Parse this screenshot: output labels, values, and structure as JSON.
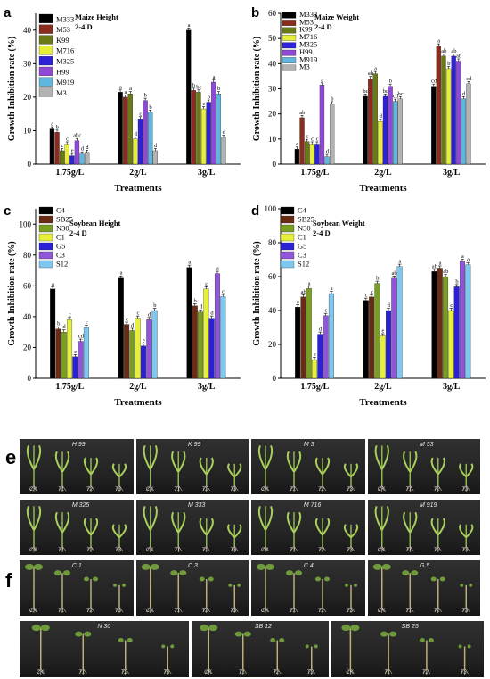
{
  "colors": {
    "maize": [
      "#000000",
      "#8b2d1e",
      "#6a7a16",
      "#e6ef3c",
      "#2d22d8",
      "#9048d6",
      "#5fb6df",
      "#b3b3b3"
    ],
    "soy": [
      "#000000",
      "#6b2c16",
      "#7a9d23",
      "#e6ef3c",
      "#2a20d6",
      "#8f57d7",
      "#7ec7ee"
    ],
    "soy_fill_overrides": [
      "#151515",
      "#5d3a25",
      "#78922e",
      "#d9ea4c",
      "#2d2fd0",
      "#8e5fd1",
      "#7ccaf0"
    ]
  },
  "chart_data": [
    {
      "type": "bar",
      "panel": "a",
      "legend_title": [
        "Maize Height",
        "2-4 D"
      ],
      "categories": [
        "1.75g/L",
        "2g/L",
        "3g/L"
      ],
      "xlabel": "Treatments",
      "ylabel": "Growth Inhibition rate (%)",
      "ylim": [
        0,
        45
      ],
      "yticks": [
        0,
        10,
        20,
        30,
        40
      ],
      "series": [
        {
          "name": "M333",
          "values": [
            10.5,
            21.5,
            40
          ],
          "letters": [
            "a",
            "a",
            "a"
          ]
        },
        {
          "name": "M53",
          "values": [
            9.5,
            20,
            22
          ],
          "letters": [
            "b",
            "a",
            "b"
          ]
        },
        {
          "name": "K99",
          "values": [
            4,
            21,
            21.5
          ],
          "letters": [
            "c",
            "a",
            "bc"
          ]
        },
        {
          "name": "M716",
          "values": [
            6,
            7.5,
            16.5
          ],
          "letters": [
            "c",
            "d",
            "c"
          ]
        },
        {
          "name": "M325",
          "values": [
            2.5,
            13.5,
            18.5
          ],
          "letters": [
            "e",
            "c",
            "b"
          ]
        },
        {
          "name": "H99",
          "values": [
            7,
            19,
            24.5
          ],
          "letters": [
            "abc",
            "b",
            "a"
          ]
        },
        {
          "name": "M919",
          "values": [
            3,
            15.5,
            21
          ],
          "letters": [
            "d",
            "b",
            "b"
          ]
        },
        {
          "name": "M3",
          "values": [
            3.5,
            4,
            8
          ],
          "letters": [
            "d",
            "d",
            "d"
          ]
        }
      ]
    },
    {
      "type": "bar",
      "panel": "b",
      "legend_title": [
        "Maize Weight",
        "2-4 D"
      ],
      "categories": [
        "1.75g/L",
        "2g/L",
        "3g/L"
      ],
      "xlabel": "Treatments",
      "ylabel": "Growth Inhibition rate (%)",
      "ylim": [
        0,
        60
      ],
      "yticks": [
        0,
        10,
        20,
        30,
        40,
        50,
        60
      ],
      "series": [
        {
          "name": "M333",
          "values": [
            6,
            27,
            31
          ],
          "letters": [
            "e",
            "bc",
            "cd"
          ]
        },
        {
          "name": "M53",
          "values": [
            18.5,
            34,
            47
          ],
          "letters": [
            "ab",
            "ab",
            "a"
          ]
        },
        {
          "name": "K99",
          "values": [
            9,
            36,
            43
          ],
          "letters": [
            "c",
            "a",
            "ab"
          ]
        },
        {
          "name": "M716",
          "values": [
            8,
            17,
            38
          ],
          "letters": [
            "c",
            "d",
            "b"
          ]
        },
        {
          "name": "M325",
          "values": [
            8,
            27,
            43
          ],
          "letters": [
            "c",
            "bc",
            "ab"
          ]
        },
        {
          "name": "H99",
          "values": [
            31.5,
            31,
            41
          ],
          "letters": [
            "a",
            "b",
            "ab"
          ]
        },
        {
          "name": "M919",
          "values": [
            3,
            25,
            26
          ],
          "letters": [
            "d",
            "cd",
            "d"
          ]
        },
        {
          "name": "M3",
          "values": [
            24,
            26,
            32
          ],
          "letters": [
            "b",
            "bc",
            "cd"
          ]
        }
      ]
    },
    {
      "type": "bar",
      "panel": "c",
      "legend_title": [
        "Soybean Height",
        "2-4 D"
      ],
      "categories": [
        "1.75g/L",
        "2g/L",
        "3g/L"
      ],
      "xlabel": "Treatments",
      "ylabel": "Growth Inhibition rate (%)",
      "ylim": [
        0,
        110
      ],
      "yticks": [
        0,
        20,
        40,
        60,
        80,
        100
      ],
      "series": [
        {
          "name": "C4",
          "values": [
            58,
            65,
            72
          ],
          "letters": [
            "a",
            "a",
            "a"
          ]
        },
        {
          "name": "SB25",
          "values": [
            32,
            35,
            47
          ],
          "letters": [
            "b",
            "c",
            "b"
          ]
        },
        {
          "name": "N30",
          "values": [
            30,
            31,
            43
          ],
          "letters": [
            "d",
            "d",
            "d"
          ]
        },
        {
          "name": "C1",
          "values": [
            38,
            39,
            58
          ],
          "letters": [
            "c",
            "c",
            "c"
          ]
        },
        {
          "name": "G5",
          "values": [
            14,
            21,
            39
          ],
          "letters": [
            "e",
            "e",
            "d"
          ]
        },
        {
          "name": "C3",
          "values": [
            24,
            38,
            68
          ],
          "letters": [
            "cd",
            "d",
            "a"
          ]
        },
        {
          "name": "S12",
          "values": [
            33,
            44,
            53
          ],
          "letters": [
            "c",
            "b",
            "c"
          ]
        }
      ]
    },
    {
      "type": "bar",
      "panel": "d",
      "legend_title": [
        "Soybean Weight",
        "2-4 D"
      ],
      "categories": [
        "1.75g/L",
        "2g/L",
        "3g/L"
      ],
      "xlabel": "Treatments",
      "ylabel": "Growth Inhibition rate (%)",
      "ylim": [
        0,
        100
      ],
      "yticks": [
        0,
        20,
        40,
        60,
        80,
        100
      ],
      "series": [
        {
          "name": "C4",
          "values": [
            42,
            46,
            63
          ],
          "letters": [
            "c",
            "c",
            "ab"
          ]
        },
        {
          "name": "SB25",
          "values": [
            48,
            48,
            65
          ],
          "letters": [
            "ab",
            "c",
            "a"
          ]
        },
        {
          "name": "N30",
          "values": [
            53,
            56,
            60
          ],
          "letters": [
            "a",
            "b",
            "ab"
          ]
        },
        {
          "name": "C1",
          "values": [
            11,
            25,
            40
          ],
          "letters": [
            "e",
            "e",
            "c"
          ]
        },
        {
          "name": "G5",
          "values": [
            26,
            40,
            54
          ],
          "letters": [
            "d",
            "d",
            "b"
          ]
        },
        {
          "name": "C3",
          "values": [
            37,
            59,
            69
          ],
          "letters": [
            "c",
            "ab",
            "a"
          ]
        },
        {
          "name": "S12",
          "values": [
            50,
            66,
            67
          ],
          "letters": [
            "a",
            "a",
            "a"
          ]
        }
      ]
    }
  ],
  "photos": {
    "label_e": "e",
    "label_f": "f",
    "rows": [
      [
        {
          "name": "H 99",
          "treat": [
            "CK",
            "T1",
            "T2",
            "T3"
          ]
        },
        {
          "name": "K 99",
          "treat": [
            "CK",
            "T1",
            "T2",
            "T3"
          ]
        },
        {
          "name": "M 3",
          "treat": [
            "CK",
            "T1",
            "T2",
            "T3"
          ]
        },
        {
          "name": "M 53",
          "treat": [
            "CK",
            "T1",
            "T2",
            "T3"
          ]
        }
      ],
      [
        {
          "name": "M 325",
          "treat": [
            "CK",
            "T1",
            "T2",
            "T3"
          ]
        },
        {
          "name": "M 333",
          "treat": [
            "CK",
            "T1",
            "T2",
            "T3"
          ]
        },
        {
          "name": "M 716",
          "treat": [
            "CK",
            "T1",
            "T2",
            "T3"
          ]
        },
        {
          "name": "M 919",
          "treat": [
            "CK",
            "T1",
            "T2",
            "T3"
          ]
        }
      ],
      [
        {
          "name": "C 1",
          "treat": [
            "CK",
            "T1",
            "T2",
            "T3"
          ]
        },
        {
          "name": "C 3",
          "treat": [
            "CK",
            "T1",
            "T2",
            "T3"
          ]
        },
        {
          "name": "C 4",
          "treat": [
            "CK",
            "T1",
            "T2",
            "T3"
          ]
        },
        {
          "name": "G 5",
          "treat": [
            "CK",
            "T1",
            "T2",
            "T3"
          ]
        }
      ],
      [
        {
          "name": "N 30",
          "treat": [
            "CK",
            "T1",
            "T2",
            "T3"
          ]
        },
        {
          "name": "SB 12",
          "treat": [
            "CK",
            "T1",
            "T2",
            "T3"
          ]
        },
        {
          "name": "SB 25",
          "treat": [
            "CK",
            "T1",
            "T2",
            "T3"
          ]
        }
      ]
    ]
  }
}
